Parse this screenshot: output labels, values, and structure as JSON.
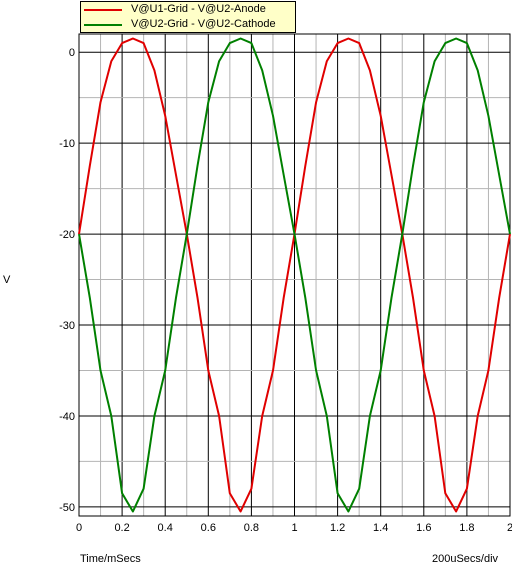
{
  "chart_data": {
    "type": "line",
    "xlabel": "Time/mSecs",
    "ylabel": "V",
    "scale_note": "200uSecs/div",
    "xlim": [
      0,
      2
    ],
    "ylim": [
      -51,
      2
    ],
    "x_ticks": [
      0,
      0.2,
      0.4,
      0.6,
      0.8,
      1,
      1.2,
      1.4,
      1.6,
      1.8,
      2
    ],
    "y_ticks": [
      0,
      -10,
      -20,
      -30,
      -40,
      -50
    ],
    "grid": true,
    "legend_position": "top-left",
    "series": [
      {
        "name": "V@U1-Grid - V@U2-Anode",
        "color": "#e00000",
        "x": [
          0,
          0.05,
          0.1,
          0.15,
          0.2,
          0.25,
          0.3,
          0.35,
          0.4,
          0.45,
          0.5,
          0.55,
          0.6,
          0.65,
          0.7,
          0.75,
          0.8,
          0.85,
          0.9,
          0.95,
          1,
          1.05,
          1.1,
          1.15,
          1.2,
          1.25,
          1.3,
          1.35,
          1.4,
          1.45,
          1.5,
          1.55,
          1.6,
          1.65,
          1.7,
          1.75,
          1.8,
          1.85,
          1.9,
          1.95,
          2
        ],
        "y": [
          -20,
          -12.5,
          -5.5,
          -1,
          1,
          1.5,
          1,
          -2,
          -7,
          -13.5,
          -20,
          -27,
          -35,
          -40,
          -48.5,
          -50.5,
          -48,
          -40,
          -35,
          -27,
          -20,
          -12.5,
          -5.5,
          -1,
          1,
          1.5,
          1,
          -2,
          -7,
          -13.5,
          -20,
          -27,
          -35,
          -40,
          -48.5,
          -50.5,
          -48,
          -40,
          -35,
          -27,
          -20
        ]
      },
      {
        "name": "V@U2-Grid - V@U2-Cathode",
        "color": "#008000",
        "x": [
          0,
          0.05,
          0.1,
          0.15,
          0.2,
          0.25,
          0.3,
          0.35,
          0.4,
          0.45,
          0.5,
          0.55,
          0.6,
          0.65,
          0.7,
          0.75,
          0.8,
          0.85,
          0.9,
          0.95,
          1,
          1.05,
          1.1,
          1.15,
          1.2,
          1.25,
          1.3,
          1.35,
          1.4,
          1.45,
          1.5,
          1.55,
          1.6,
          1.65,
          1.7,
          1.75,
          1.8,
          1.85,
          1.9,
          1.95,
          2
        ],
        "y": [
          -20,
          -27,
          -35,
          -40,
          -48.5,
          -50.5,
          -48,
          -40,
          -35,
          -27,
          -20,
          -12.5,
          -5.5,
          -1,
          1,
          1.5,
          1,
          -2,
          -7,
          -13.5,
          -20,
          -27,
          -35,
          -40,
          -48.5,
          -50.5,
          -48,
          -40,
          -35,
          -27,
          -20,
          -12.5,
          -5.5,
          -1,
          1,
          1.5,
          1,
          -2,
          -7,
          -13.5,
          -20
        ]
      }
    ]
  }
}
